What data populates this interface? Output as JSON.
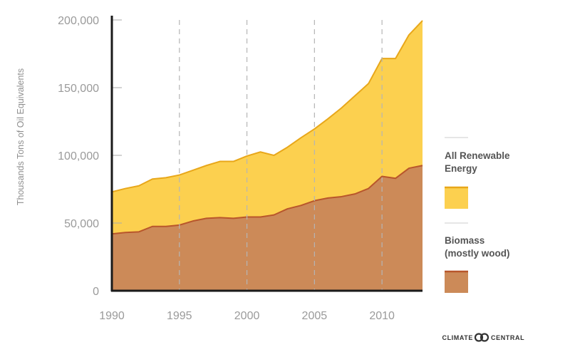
{
  "chart_data": {
    "type": "area",
    "stacked": false,
    "x": [
      1990,
      1991,
      1992,
      1993,
      1994,
      1995,
      1996,
      1997,
      1998,
      1999,
      2000,
      2001,
      2002,
      2003,
      2004,
      2005,
      2006,
      2007,
      2008,
      2009,
      2010,
      2011,
      2012,
      2013
    ],
    "series": [
      {
        "name": "All Renewable Energy",
        "color": "#fcd04f",
        "line_color": "#e8a71a",
        "values": [
          73000,
          75500,
          77500,
          82500,
          83500,
          85500,
          89000,
          92500,
          95500,
          95500,
          99500,
          102500,
          100000,
          106000,
          113000,
          119500,
          127000,
          135000,
          144000,
          153000,
          171500,
          171500,
          189000,
          199500
        ]
      },
      {
        "name": "Biomass (mostly wood)",
        "color": "#cc8a58",
        "line_color": "#b8562b",
        "values": [
          42000,
          43000,
          43500,
          47500,
          47500,
          48500,
          51500,
          53500,
          54000,
          53500,
          54500,
          54500,
          56000,
          60500,
          63000,
          66500,
          68500,
          69500,
          71500,
          75500,
          84500,
          83000,
          90500,
          92500
        ]
      }
    ],
    "xticks": [
      "1990",
      "1995",
      "2000",
      "2005",
      "2010"
    ],
    "yticks": [
      "0",
      "50,000",
      "100,000",
      "150,000",
      "200,000"
    ],
    "ylabel": "Thousands Tons of Oil Equivalents",
    "xlim": [
      1990,
      2013
    ],
    "ylim": [
      0,
      200000
    ],
    "grid": "vertical-dashed",
    "legend": {
      "placement": "right",
      "items": [
        {
          "label_lines": [
            "All Renewable",
            "Energy"
          ]
        },
        {
          "label_lines": [
            "Biomass",
            "(mostly wood)"
          ]
        }
      ]
    }
  },
  "logo": {
    "left": "CLIMATE",
    "right": "CENTRAL"
  },
  "colors": {
    "axis": "#1a1a1a",
    "grid": "#b5b5b5",
    "divider": "#cccccc"
  }
}
